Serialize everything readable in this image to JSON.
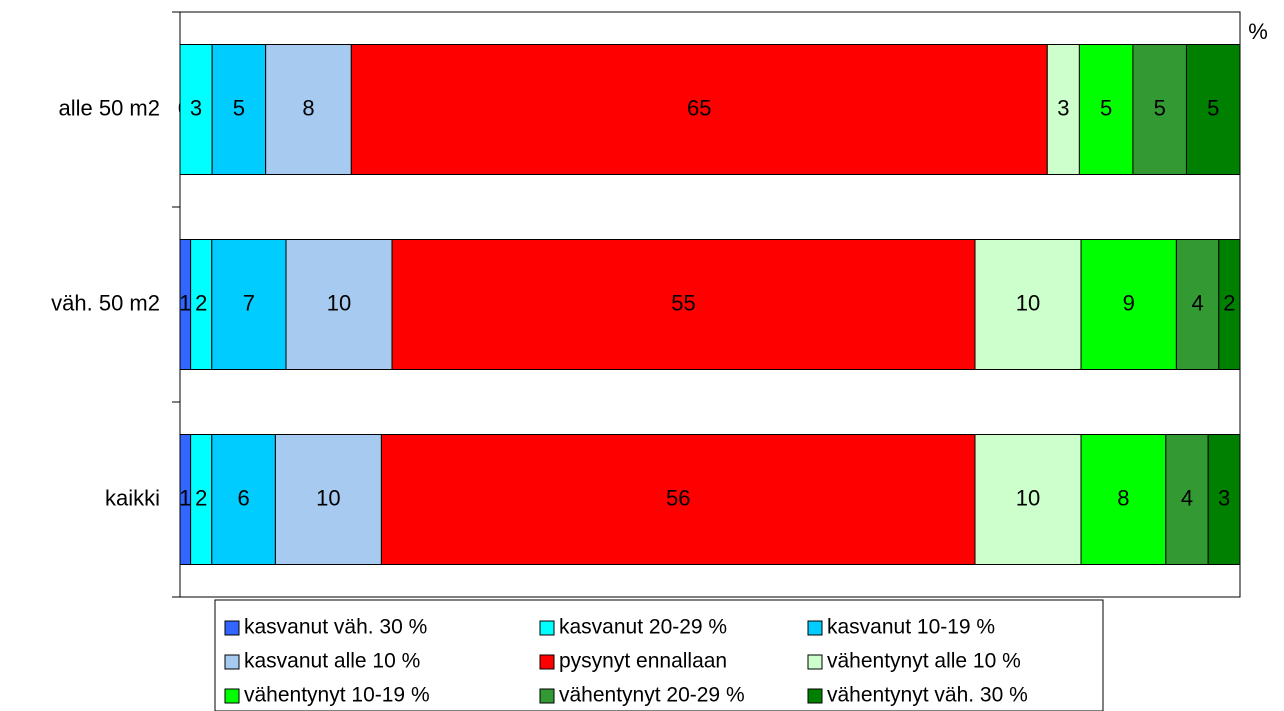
{
  "chart_data": {
    "type": "stacked100_barh",
    "axis_label": "%",
    "categories": [
      "alle 50 m2",
      "väh. 50 m2",
      "kaikki"
    ],
    "series": [
      {
        "name": "kasvanut väh. 30 %",
        "color": "#3366ff",
        "values": [
          0,
          1,
          1
        ]
      },
      {
        "name": "kasvanut 20-29 %",
        "color": "#00ffff",
        "values": [
          3,
          2,
          2
        ]
      },
      {
        "name": "kasvanut 10-19 %",
        "color": "#00ccff",
        "values": [
          5,
          7,
          6
        ]
      },
      {
        "name": "kasvanut alle 10 %",
        "color": "#a6caf0",
        "values": [
          8,
          10,
          10
        ]
      },
      {
        "name": "pysynyt ennallaan",
        "color": "#ff0000",
        "values": [
          65,
          55,
          56
        ]
      },
      {
        "name": "vähentynyt alle 10 %",
        "color": "#ccffcc",
        "values": [
          3,
          10,
          10
        ]
      },
      {
        "name": "vähentynyt 10-19 %",
        "color": "#00ff00",
        "values": [
          5,
          9,
          8
        ]
      },
      {
        "name": "vähentynyt 20-29 %",
        "color": "#339933",
        "values": [
          5,
          4,
          4
        ]
      },
      {
        "name": "vähentynyt väh. 30 %",
        "color": "#008000",
        "values": [
          5,
          2,
          3
        ]
      }
    ]
  }
}
